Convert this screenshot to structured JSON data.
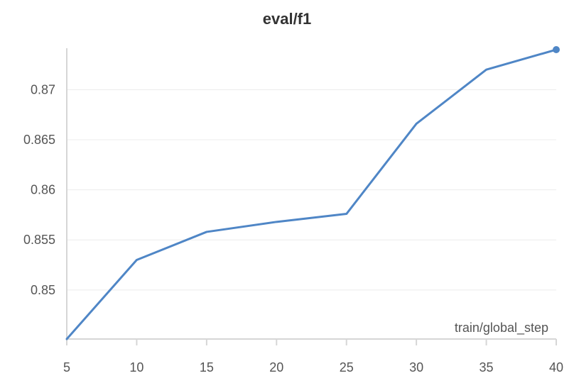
{
  "chart_data": {
    "type": "line",
    "title": "eval/f1",
    "xlabel": "train/global_step",
    "ylabel": "",
    "x": [
      5,
      10,
      15,
      20,
      25,
      30,
      35,
      40
    ],
    "series": [
      {
        "values": [
          0.8451,
          0.853,
          0.8558,
          0.8568,
          0.8576,
          0.8666,
          0.872,
          0.874
        ]
      }
    ],
    "x_ticks": [
      5,
      10,
      15,
      20,
      25,
      30,
      35,
      40
    ],
    "y_ticks": [
      0.85,
      0.855,
      0.86,
      0.865,
      0.87
    ],
    "y_tick_labels": [
      "0.85",
      "0.855",
      "0.86",
      "0.865",
      "0.87"
    ],
    "xlim": [
      5,
      40
    ],
    "ylim": [
      0.8451,
      0.874
    ],
    "grid": true,
    "line_color": "#4f86c6"
  }
}
